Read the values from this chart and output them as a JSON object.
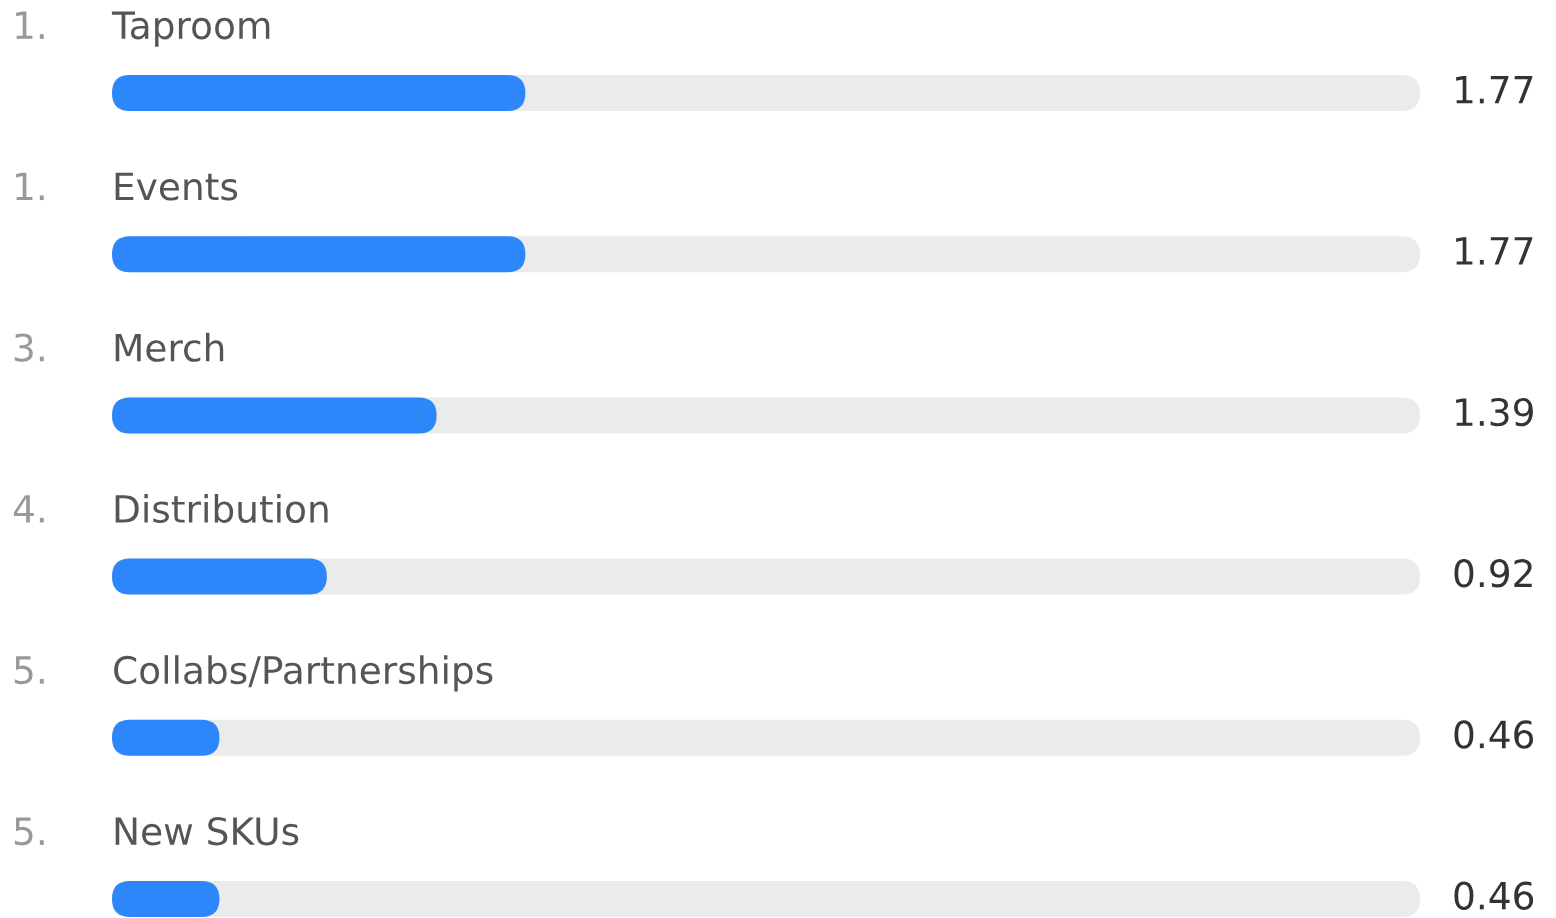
{
  "chart_data": {
    "type": "bar",
    "orientation": "horizontal",
    "categories": [
      "Taproom",
      "Events",
      "Merch",
      "Distribution",
      "Collabs/Partnerships",
      "New SKUs"
    ],
    "values": [
      1.77,
      1.77,
      1.39,
      0.92,
      0.46,
      0.46
    ],
    "color": "#2d87fa",
    "data_labels": true,
    "annotations": [
      "1.",
      "1.",
      "3.",
      "4.",
      "5.",
      "5."
    ],
    "xlim": [
      0,
      5.6
    ]
  }
}
